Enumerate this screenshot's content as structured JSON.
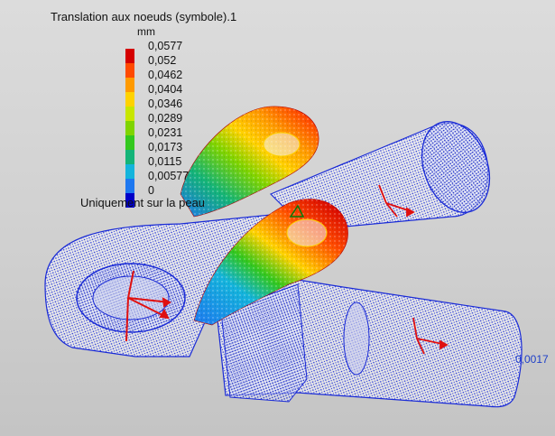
{
  "legend": {
    "title": "Translation aux noeuds (symbole).1",
    "unit": "mm",
    "entries": [
      {
        "label": "0,0577",
        "color": "#d40000"
      },
      {
        "label": "0,052",
        "color": "#ff4a00"
      },
      {
        "label": "0,0462",
        "color": "#ff9a00"
      },
      {
        "label": "0,0404",
        "color": "#ffd200"
      },
      {
        "label": "0,0346",
        "color": "#c8e600"
      },
      {
        "label": "0,0289",
        "color": "#7fd400"
      },
      {
        "label": "0,0231",
        "color": "#33c81e"
      },
      {
        "label": "0,0173",
        "color": "#14b478"
      },
      {
        "label": "0,0115",
        "color": "#14b4dc"
      },
      {
        "label": "0,00577",
        "color": "#1e78f0"
      },
      {
        "label": "0",
        "color": "#0000c8"
      }
    ],
    "footnote": "Uniquement sur la peau"
  },
  "edge_value": "0,0017",
  "colors": {
    "mesh_low": "#1a2bd6",
    "mesh_high": "#d40000",
    "axis": "#e01010"
  }
}
